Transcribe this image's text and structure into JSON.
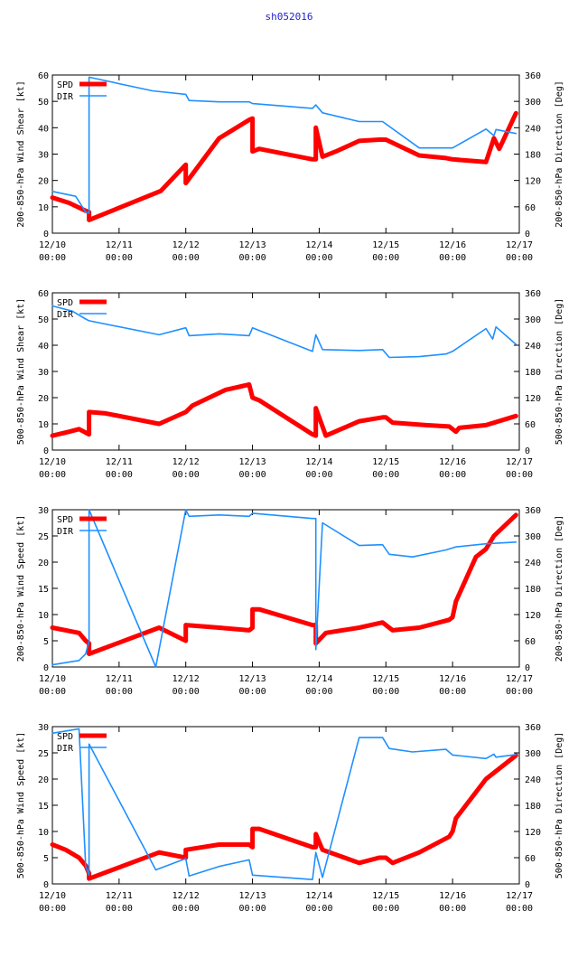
{
  "title": "sh052016",
  "colors": {
    "spd": "#ff0000",
    "dir": "#1e90ff",
    "title": "#2222cc"
  },
  "x_ticks": [
    {
      "d": "12/10",
      "t": "00:00"
    },
    {
      "d": "12/11",
      "t": "00:00"
    },
    {
      "d": "12/12",
      "t": "00:00"
    },
    {
      "d": "12/13",
      "t": "00:00"
    },
    {
      "d": "12/14",
      "t": "00:00"
    },
    {
      "d": "12/15",
      "t": "00:00"
    },
    {
      "d": "12/16",
      "t": "00:00"
    },
    {
      "d": "12/17",
      "t": "00:00"
    }
  ],
  "legend": {
    "spd": "SPD",
    "dir": "DIR"
  },
  "chart_data": [
    {
      "type": "line",
      "ylabel_left": "200-850-hPa Wind Shear [kt]",
      "ylabel_right": "200-850-hPa Direction [Deg]",
      "xlim": [
        0,
        7
      ],
      "ylim_left": [
        0,
        60
      ],
      "ylim_right": [
        0,
        360
      ],
      "yticks_left": [
        0,
        10,
        20,
        30,
        40,
        50,
        60
      ],
      "yticks_right": [
        0,
        60,
        120,
        180,
        240,
        300,
        360
      ],
      "series": [
        {
          "name": "SPD",
          "axis": "left",
          "x": [
            0,
            0.25,
            0.5,
            0.55,
            0.55,
            1.625,
            2.0,
            2.0,
            2.5,
            2.95,
            3.0,
            3.0,
            3.1,
            3.9,
            3.95,
            3.95,
            4.05,
            4.25,
            4.6,
            4.9,
            5.0,
            5.5,
            5.9,
            6.0,
            6.5,
            6.62,
            6.7,
            6.95
          ],
          "values": [
            13.5,
            11.5,
            8.5,
            8,
            5,
            16,
            26,
            19,
            36,
            43,
            43.5,
            31,
            32,
            28,
            28,
            40,
            29,
            31,
            35,
            35.5,
            35.5,
            29.5,
            28.5,
            28,
            27,
            36,
            32,
            45.5
          ]
        },
        {
          "name": "DIR",
          "axis": "right",
          "x": [
            0,
            0.35,
            0.5,
            0.55,
            0.55,
            1.5,
            2.0,
            2.05,
            2.5,
            2.95,
            3.0,
            3.9,
            3.95,
            4.05,
            4.6,
            4.95,
            5.5,
            6.0,
            6.5,
            6.62,
            6.65,
            6.95
          ],
          "values": [
            95,
            84,
            48,
            45,
            355,
            324,
            316,
            302,
            299,
            299,
            295,
            284,
            292,
            274,
            254,
            254,
            194,
            194,
            237,
            222,
            236,
            227
          ]
        }
      ]
    },
    {
      "type": "line",
      "ylabel_left": "500-850-hPa Wind Shear [kt]",
      "ylabel_right": "500-850-hPa Direction [Deg]",
      "xlim": [
        0,
        7
      ],
      "ylim_left": [
        0,
        60
      ],
      "ylim_right": [
        0,
        360
      ],
      "yticks_left": [
        0,
        10,
        20,
        30,
        40,
        50,
        60
      ],
      "yticks_right": [
        0,
        60,
        120,
        180,
        240,
        300,
        360
      ],
      "series": [
        {
          "name": "SPD",
          "axis": "left",
          "x": [
            0,
            0.25,
            0.4,
            0.55,
            0.55,
            0.8,
            1.6,
            2.0,
            2.1,
            2.6,
            2.95,
            3.0,
            3.1,
            3.9,
            3.95,
            3.95,
            4.1,
            4.6,
            4.95,
            5.0,
            5.1,
            5.6,
            5.95,
            6.05,
            6.1,
            6.5,
            6.95
          ],
          "values": [
            5.5,
            7,
            8,
            6,
            14.5,
            14,
            10,
            14.5,
            17,
            23,
            25,
            20,
            19,
            6,
            5.5,
            16,
            5.5,
            11,
            12.5,
            12.5,
            10.5,
            9.5,
            9,
            7,
            8.5,
            9.5,
            13
          ]
        },
        {
          "name": "DIR",
          "axis": "right",
          "x": [
            0,
            0.3,
            0.5,
            0.55,
            0.55,
            1.6,
            2.0,
            2.05,
            2.5,
            2.95,
            3.0,
            3.9,
            3.95,
            4.05,
            4.6,
            4.95,
            5.05,
            5.5,
            5.9,
            6.0,
            6.5,
            6.6,
            6.65,
            6.95
          ],
          "values": [
            330,
            318,
            300,
            296,
            296,
            264,
            280,
            262,
            266,
            262,
            280,
            226,
            264,
            230,
            228,
            230,
            212,
            214,
            220,
            226,
            278,
            254,
            282,
            242
          ]
        }
      ]
    },
    {
      "type": "line",
      "ylabel_left": "200-850-hPa Wind Speed [kt]",
      "ylabel_right": "200-850-hPa Direction [Deg]",
      "xlim": [
        0,
        7
      ],
      "ylim_left": [
        0,
        30
      ],
      "ylim_right": [
        0,
        360
      ],
      "yticks_left": [
        0,
        5,
        10,
        15,
        20,
        25,
        30
      ],
      "yticks_right": [
        0,
        60,
        120,
        180,
        240,
        300,
        360
      ],
      "series": [
        {
          "name": "SPD",
          "axis": "left",
          "x": [
            0,
            0.4,
            0.5,
            0.55,
            0.55,
            1.6,
            2.0,
            2.0,
            2.5,
            2.95,
            3.0,
            3.0,
            3.1,
            3.9,
            3.95,
            3.95,
            4.1,
            4.6,
            4.95,
            5.0,
            5.1,
            5.5,
            5.95,
            6.0,
            6.05,
            6.35,
            6.5,
            6.62,
            6.95
          ],
          "values": [
            7.5,
            6.5,
            5,
            4.5,
            2.5,
            7.5,
            5,
            8,
            7.5,
            7,
            7.5,
            11,
            11,
            8,
            8,
            4.5,
            6.5,
            7.5,
            8.5,
            8,
            7,
            7.5,
            9,
            9.5,
            12.5,
            21,
            22.5,
            25,
            29
          ]
        },
        {
          "name": "DIR",
          "axis": "right",
          "x": [
            0,
            0.4,
            0.5,
            0.55,
            0.55,
            1.55,
            2.0,
            2.05,
            2.5,
            2.95,
            3.0,
            3.9,
            3.95,
            3.95,
            4.05,
            4.6,
            4.95,
            5.05,
            5.4,
            5.9,
            6.05,
            6.5,
            6.95
          ],
          "values": [
            5,
            15,
            30,
            60,
            360,
            0,
            360,
            345,
            348,
            345,
            352,
            340,
            340,
            40,
            330,
            278,
            280,
            258,
            252,
            268,
            275,
            282,
            286
          ]
        }
      ]
    },
    {
      "type": "line",
      "ylabel_left": "500-850-hPa Wind Speed [kt]",
      "ylabel_right": "500-850-hPa Direction [Deg]",
      "xlim": [
        0,
        7
      ],
      "ylim_left": [
        0,
        30
      ],
      "ylim_right": [
        0,
        360
      ],
      "yticks_left": [
        0,
        5,
        10,
        15,
        20,
        25,
        30
      ],
      "yticks_right": [
        0,
        60,
        120,
        180,
        240,
        300,
        360
      ],
      "series": [
        {
          "name": "SPD",
          "axis": "left",
          "x": [
            0,
            0.2,
            0.4,
            0.5,
            0.55,
            0.55,
            1.6,
            2.0,
            2.0,
            2.5,
            2.95,
            3.0,
            3.0,
            3.1,
            3.9,
            3.95,
            3.95,
            4.05,
            4.6,
            4.9,
            5.0,
            5.1,
            5.5,
            5.95,
            6.0,
            6.05,
            6.5,
            6.95
          ],
          "values": [
            7.5,
            6.5,
            5,
            3.5,
            2,
            1,
            6,
            5,
            6.5,
            7.5,
            7.5,
            7,
            10.5,
            10.5,
            7,
            7,
            9.5,
            6.5,
            4,
            5,
            5,
            4,
            6,
            9,
            10,
            12.5,
            20,
            24.5
          ]
        },
        {
          "name": "DIR",
          "axis": "right",
          "x": [
            0,
            0.4,
            0.5,
            0.55,
            0.55,
            1.55,
            2.0,
            2.05,
            2.5,
            2.95,
            3.0,
            3.9,
            3.95,
            4.05,
            4.6,
            4.95,
            5.05,
            5.4,
            5.9,
            6.0,
            6.5,
            6.62,
            6.65,
            6.95
          ],
          "values": [
            345,
            355,
            40,
            20,
            320,
            32,
            58,
            18,
            40,
            55,
            20,
            10,
            72,
            15,
            335,
            335,
            310,
            302,
            308,
            295,
            287,
            297,
            290,
            296
          ]
        }
      ]
    }
  ]
}
